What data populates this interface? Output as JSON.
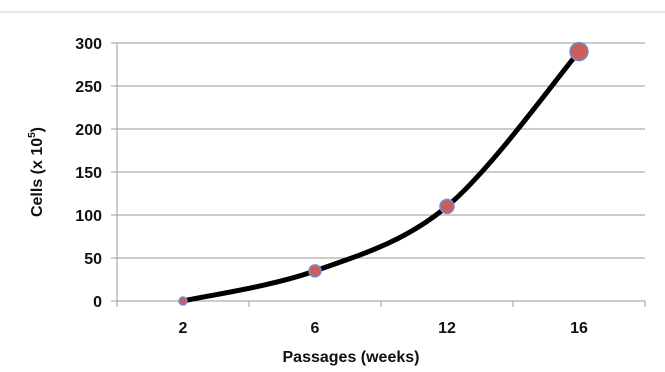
{
  "chart_data": {
    "type": "line",
    "x_categories": [
      "2",
      "6",
      "12",
      "16"
    ],
    "series": [
      {
        "values": [
          0,
          35,
          110,
          290
        ]
      }
    ],
    "xlabel": "Passages (weeks)",
    "ylabel_main": "Cells (x 10",
    "ylabel_superscript": "5",
    "ylabel_close": ")",
    "y_ticks": [
      "0",
      "50",
      "100",
      "150",
      "200",
      "250",
      "300"
    ],
    "ylim": [
      0,
      300
    ],
    "grid": "horizontal",
    "line_color": "#000000",
    "marker_color": "#cd5c5c",
    "marker_edge_color": "#6f8fcf"
  }
}
